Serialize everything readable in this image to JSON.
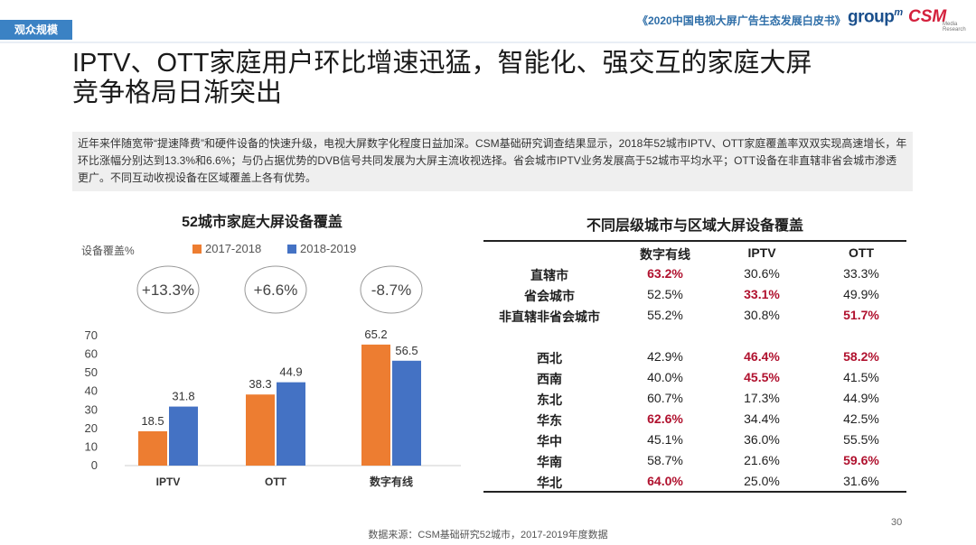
{
  "header": {
    "section_tag": "观众规模",
    "report_title": "《2020中国电视大屏广告生态发展白皮书》",
    "logo_group": "group",
    "logo_group_sup": "m",
    "logo_csm": "CSM",
    "logo_csm_sub": "Media Research"
  },
  "headline": {
    "line1": "IPTV、OTT家庭用户环比增速迅猛，智能化、强交互的家庭大屏",
    "line2": "竞争格局日渐突出"
  },
  "summary": "近年来伴随宽带“提速降费”和硬件设备的快速升级，电视大屏数字化程度日益加深。CSM基础研究调查结果显示，2018年52城市IPTV、OTT家庭覆盖率双双实现高速增长，年环比涨幅分别达到13.3%和6.6%；与仍占据优势的DVB信号共同发展为大屏主流收视选择。省会城市IPTV业务发展高于52城市平均水平；OTT设备在非直辖非省会城市渗透更广。不同互动收视设备在区域覆盖上各有优势。",
  "chart_data": {
    "type": "bar",
    "title": "52城市家庭大屏设备覆盖",
    "ylabel": "设备覆盖%",
    "categories": [
      "IPTV",
      "OTT",
      "数字有线"
    ],
    "series": [
      {
        "name": "2017-2018",
        "color": "#ed7d31",
        "values": [
          18.5,
          38.3,
          65.2
        ]
      },
      {
        "name": "2018-2019",
        "color": "#4472c4",
        "values": [
          31.8,
          44.9,
          56.5
        ]
      }
    ],
    "yticks": [
      "70",
      "60",
      "50",
      "40",
      "30",
      "20",
      "10",
      "0"
    ],
    "ylim": [
      0,
      70
    ],
    "growth_labels": [
      "+13.3%",
      "+6.6%",
      "-8.7%"
    ],
    "legend": "top"
  },
  "table": {
    "title": "不同层级城市与区域大屏设备覆盖",
    "columns": [
      "数字有线",
      "IPTV",
      "OTT"
    ],
    "rows": [
      {
        "label": "直辖市",
        "values": [
          "63.2%",
          "30.6%",
          "33.3%"
        ],
        "highlight": [
          true,
          false,
          false
        ]
      },
      {
        "label": "省会城市",
        "values": [
          "52.5%",
          "33.1%",
          "49.9%"
        ],
        "highlight": [
          false,
          true,
          false
        ]
      },
      {
        "label": "非直辖非省会城市",
        "values": [
          "55.2%",
          "30.8%",
          "51.7%"
        ],
        "highlight": [
          false,
          false,
          true
        ]
      },
      {
        "label": "西北",
        "values": [
          "42.9%",
          "46.4%",
          "58.2%"
        ],
        "highlight": [
          false,
          true,
          true
        ]
      },
      {
        "label": "西南",
        "values": [
          "40.0%",
          "45.5%",
          "41.5%"
        ],
        "highlight": [
          false,
          true,
          false
        ]
      },
      {
        "label": "东北",
        "values": [
          "60.7%",
          "17.3%",
          "44.9%"
        ],
        "highlight": [
          false,
          false,
          false
        ]
      },
      {
        "label": "华东",
        "values": [
          "62.6%",
          "34.4%",
          "42.5%"
        ],
        "highlight": [
          true,
          false,
          false
        ]
      },
      {
        "label": "华中",
        "values": [
          "45.1%",
          "36.0%",
          "55.5%"
        ],
        "highlight": [
          false,
          false,
          false
        ]
      },
      {
        "label": "华南",
        "values": [
          "58.7%",
          "21.6%",
          "59.6%"
        ],
        "highlight": [
          false,
          false,
          true
        ]
      },
      {
        "label": "华北",
        "values": [
          "64.0%",
          "25.0%",
          "31.6%"
        ],
        "highlight": [
          true,
          false,
          false
        ]
      }
    ]
  },
  "footer": {
    "source": "数据来源：CSM基础研究52城市，2017-2019年度数据",
    "page_number": "30"
  }
}
